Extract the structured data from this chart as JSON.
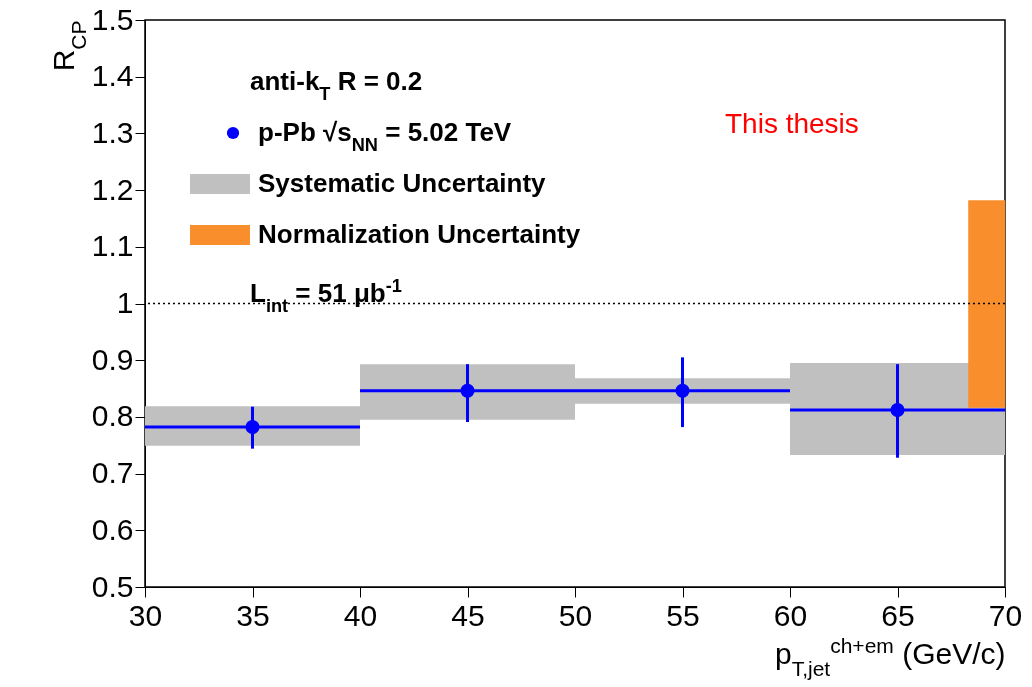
{
  "chart_data": {
    "type": "scatter",
    "xlabel": "p$_{T,jet}$$^{ch+em}$ (GeV/c)",
    "ylabel": "R$_{CP}$",
    "xlim": [
      30,
      70
    ],
    "ylim": [
      0.5,
      1.5
    ],
    "xticks": [
      30,
      35,
      40,
      45,
      50,
      55,
      60,
      65,
      70
    ],
    "yticks": [
      0.5,
      0.6,
      0.7,
      0.8,
      0.9,
      1,
      1.1,
      1.2,
      1.3,
      1.4,
      1.5
    ],
    "grid": false,
    "legend": "top left",
    "marker": "circle",
    "series": [
      {
        "name": "p-Pb √s$_{NN}$ = 5.02 TeV",
        "color": "#0000ff",
        "x": [
          35,
          45,
          55,
          65
        ],
        "values": [
          0.782,
          0.846,
          0.846,
          0.812
        ],
        "errors": [
          [
            0.744,
            0.818
          ],
          [
            0.791,
            0.893
          ],
          [
            0.782,
            0.905
          ],
          [
            0.728,
            0.893
          ]
        ],
        "xerrors": [
          5,
          5,
          5,
          5
        ]
      },
      {
        "name": "Systematic Uncertainty",
        "type": "bar",
        "color": "#c0c0c0",
        "x": [
          35,
          45,
          55,
          65
        ],
        "base": [
          0.749,
          0.795,
          0.823,
          0.733
        ],
        "values": [
          0.07,
          0.098,
          0.045,
          0.162
        ]
      },
      {
        "name": "Normalization Uncertainty",
        "type": "bar",
        "color": "#f98e2c",
        "x": [
          69.15
        ],
        "base": [
          0.816
        ],
        "values": [
          0.366
        ]
      }
    ],
    "ref_lines": [
      {
        "axis": "y",
        "value": 1,
        "line_style": "dotted",
        "color": "#000000"
      }
    ],
    "annotations": [
      "anti-k$_{T}$  R = 0.2",
      "L$_{int}$ = 51 μb$^{-1}$",
      "This thesis"
    ]
  }
}
